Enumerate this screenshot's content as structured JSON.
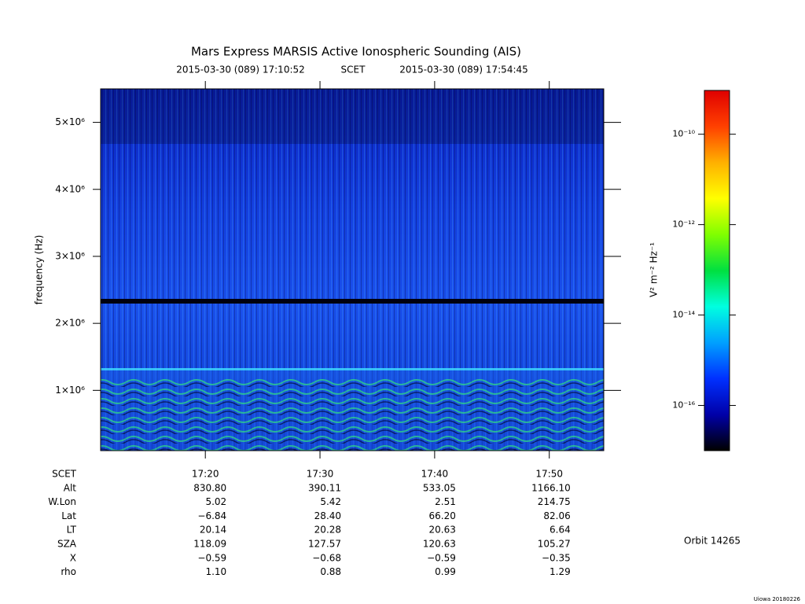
{
  "chart_data": {
    "type": "spectrogram",
    "title": "Mars Express MARSIS Active Ionospheric Sounding (AIS)",
    "subtitle_start": "2015-03-30 (089) 17:10:52",
    "subtitle_frame": "SCET",
    "subtitle_end": "2015-03-30 (089) 17:54:45",
    "ylabel": "frequency (Hz)",
    "ylim": [
      100000,
      5500000
    ],
    "yticks": [
      {
        "value": 1000000,
        "label": "1×10⁶"
      },
      {
        "value": 2000000,
        "label": "2×10⁶"
      },
      {
        "value": 3000000,
        "label": "3×10⁶"
      },
      {
        "value": 4000000,
        "label": "4×10⁶"
      },
      {
        "value": 5000000,
        "label": "5×10⁶"
      }
    ],
    "xlim": [
      "2015-03-30T17:10:52",
      "2015-03-30T17:54:45"
    ],
    "xlabel": "SCET",
    "xticks": [
      {
        "value": "2015-03-30T17:20:00",
        "label": "17:20"
      },
      {
        "value": "2015-03-30T17:30:00",
        "label": "17:30"
      },
      {
        "value": "2015-03-30T17:40:00",
        "label": "17:40"
      },
      {
        "value": "2015-03-30T17:50:00",
        "label": "17:50"
      }
    ],
    "ephemeris": [
      {
        "label": "Alt",
        "values": [
          "830.80",
          "390.11",
          "533.05",
          "1166.10"
        ]
      },
      {
        "label": "W.Lon",
        "values": [
          "5.02",
          "5.42",
          "2.51",
          "214.75"
        ]
      },
      {
        "label": "Lat",
        "values": [
          "−6.84",
          "28.40",
          "66.20",
          "82.06"
        ]
      },
      {
        "label": "LT",
        "values": [
          "20.14",
          "20.28",
          "20.63",
          "6.64"
        ]
      },
      {
        "label": "SZA",
        "values": [
          "118.09",
          "127.57",
          "120.63",
          "105.27"
        ]
      },
      {
        "label": "X",
        "values": [
          "−0.59",
          "−0.68",
          "−0.59",
          "−0.35"
        ]
      },
      {
        "label": "rho",
        "values": [
          "1.10",
          "0.88",
          "0.99",
          "1.29"
        ]
      }
    ],
    "colorbar_label": "V² m⁻² Hz⁻¹",
    "colorbar_log": true,
    "clim": [
      1e-17,
      9.3e-10
    ],
    "cticks": [
      {
        "value": 1e-16,
        "label": "10⁻¹⁶"
      },
      {
        "value": 1e-14,
        "label": "10⁻¹⁴"
      },
      {
        "value": 1e-12,
        "label": "10⁻¹²"
      },
      {
        "value": 1e-10,
        "label": "10⁻¹⁰"
      }
    ],
    "colormap": [
      "#000000",
      "#0000a8",
      "#0030ff",
      "#00a0ff",
      "#00ffe0",
      "#00e040",
      "#80ff00",
      "#ffff00",
      "#ffb000",
      "#ff4000",
      "#e00000"
    ],
    "orbit": "Orbit 14265",
    "credit": "Uiowa 20180226"
  }
}
